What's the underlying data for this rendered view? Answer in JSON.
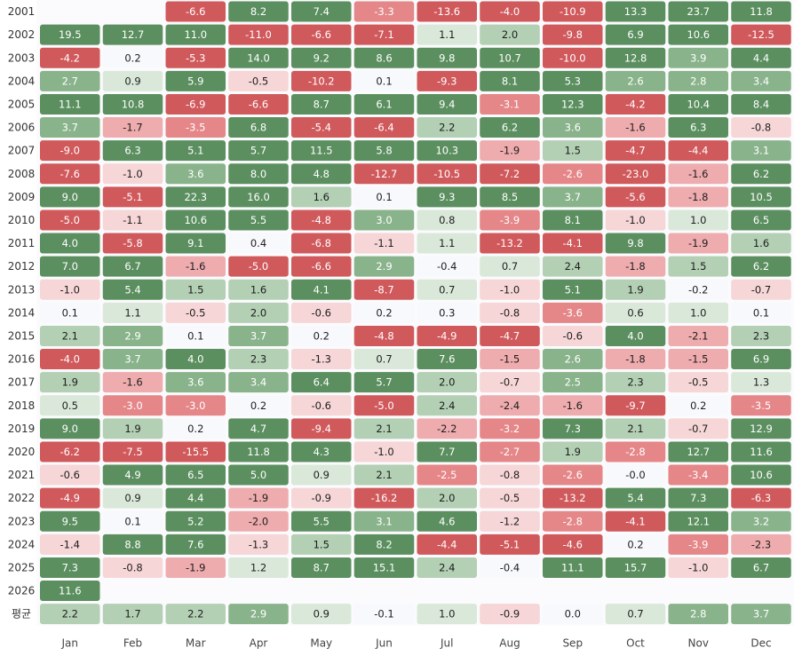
{
  "chart_data": {
    "type": "heatmap",
    "columns": [
      "Jan",
      "Feb",
      "Mar",
      "Apr",
      "May",
      "Jun",
      "Jul",
      "Aug",
      "Sep",
      "Oct",
      "Nov",
      "Dec"
    ],
    "rows": [
      "2001",
      "2002",
      "2003",
      "2004",
      "2005",
      "2006",
      "2007",
      "2008",
      "2009",
      "2010",
      "2011",
      "2012",
      "2013",
      "2014",
      "2015",
      "2016",
      "2017",
      "2018",
      "2019",
      "2020",
      "2021",
      "2022",
      "2023",
      "2024",
      "2025",
      "2026",
      "평균"
    ],
    "display": [
      [
        null,
        null,
        "-6.6",
        "8.2",
        "7.4",
        "-3.3",
        "-13.6",
        "-4.0",
        "-10.9",
        "13.3",
        "23.7",
        "11.8"
      ],
      [
        "19.5",
        "12.7",
        "11.0",
        "-11.0",
        "-6.6",
        "-7.1",
        "1.1",
        "2.0",
        "-9.8",
        "6.9",
        "10.6",
        "-12.5"
      ],
      [
        "-4.2",
        "0.2",
        "-5.3",
        "14.0",
        "9.2",
        "8.6",
        "9.8",
        "10.7",
        "-10.0",
        "12.8",
        "3.9",
        "4.4"
      ],
      [
        "2.7",
        "0.9",
        "5.9",
        "-0.5",
        "-10.2",
        "0.1",
        "-9.3",
        "8.1",
        "5.3",
        "2.6",
        "2.8",
        "3.4"
      ],
      [
        "11.1",
        "10.8",
        "-6.9",
        "-6.6",
        "8.7",
        "6.1",
        "9.4",
        "-3.1",
        "12.3",
        "-4.2",
        "10.4",
        "8.4"
      ],
      [
        "3.7",
        "-1.7",
        "-3.5",
        "6.8",
        "-5.4",
        "-6.4",
        "2.2",
        "6.2",
        "3.6",
        "-1.6",
        "6.3",
        "-0.8"
      ],
      [
        "-9.0",
        "6.3",
        "5.1",
        "5.7",
        "11.5",
        "5.8",
        "10.3",
        "-1.9",
        "1.5",
        "-4.7",
        "-4.4",
        "3.1"
      ],
      [
        "-7.6",
        "-1.0",
        "3.6",
        "8.0",
        "4.8",
        "-12.7",
        "-10.5",
        "-7.2",
        "-2.6",
        "-23.0",
        "-1.6",
        "6.2"
      ],
      [
        "9.0",
        "-5.1",
        "22.3",
        "16.0",
        "1.6",
        "0.1",
        "9.3",
        "8.5",
        "3.7",
        "-5.6",
        "-1.8",
        "10.5"
      ],
      [
        "-5.0",
        "-1.1",
        "10.6",
        "5.5",
        "-4.8",
        "3.0",
        "0.8",
        "-3.9",
        "8.1",
        "-1.0",
        "1.0",
        "6.5"
      ],
      [
        "4.0",
        "-5.8",
        "9.1",
        "0.4",
        "-6.8",
        "-1.1",
        "1.1",
        "-13.2",
        "-4.1",
        "9.8",
        "-1.9",
        "1.6"
      ],
      [
        "7.0",
        "6.7",
        "-1.6",
        "-5.0",
        "-6.6",
        "2.9",
        "-0.4",
        "0.7",
        "2.4",
        "-1.8",
        "1.5",
        "6.2"
      ],
      [
        "-1.0",
        "5.4",
        "1.5",
        "1.6",
        "4.1",
        "-8.7",
        "0.7",
        "-1.0",
        "5.1",
        "1.9",
        "-0.2",
        "-0.7"
      ],
      [
        "0.1",
        "1.1",
        "-0.5",
        "2.0",
        "-0.6",
        "0.2",
        "0.3",
        "-0.8",
        "-3.6",
        "0.6",
        "1.0",
        "0.1"
      ],
      [
        "2.1",
        "2.9",
        "0.1",
        "3.7",
        "0.2",
        "-4.8",
        "-4.9",
        "-4.7",
        "-0.6",
        "4.0",
        "-2.1",
        "2.3"
      ],
      [
        "-4.0",
        "3.7",
        "4.0",
        "2.3",
        "-1.3",
        "0.7",
        "7.6",
        "-1.5",
        "2.6",
        "-1.8",
        "-1.5",
        "6.9"
      ],
      [
        "1.9",
        "-1.6",
        "3.6",
        "3.4",
        "6.4",
        "5.7",
        "2.0",
        "-0.7",
        "2.5",
        "2.3",
        "-0.5",
        "1.3"
      ],
      [
        "0.5",
        "-3.0",
        "-3.0",
        "0.2",
        "-0.6",
        "-5.0",
        "2.4",
        "-2.4",
        "-1.6",
        "-9.7",
        "0.2",
        "-3.5"
      ],
      [
        "9.0",
        "1.9",
        "0.2",
        "4.7",
        "-9.4",
        "2.1",
        "-2.2",
        "-3.2",
        "7.3",
        "2.1",
        "-0.7",
        "12.9"
      ],
      [
        "-6.2",
        "-7.5",
        "-15.5",
        "11.8",
        "4.3",
        "-1.0",
        "7.7",
        "-2.7",
        "1.9",
        "-2.8",
        "12.7",
        "11.6"
      ],
      [
        "-0.6",
        "4.9",
        "6.5",
        "5.0",
        "0.9",
        "2.1",
        "-2.5",
        "-0.8",
        "-2.6",
        "-0.0",
        "-3.4",
        "10.6"
      ],
      [
        "-4.9",
        "0.9",
        "4.4",
        "-1.9",
        "-0.9",
        "-16.2",
        "2.0",
        "-0.5",
        "-13.2",
        "5.4",
        "7.3",
        "-6.3"
      ],
      [
        "9.5",
        "0.1",
        "5.2",
        "-2.0",
        "5.5",
        "3.1",
        "4.6",
        "-1.2",
        "-2.8",
        "-4.1",
        "12.1",
        "3.2"
      ],
      [
        "-1.4",
        "8.8",
        "7.6",
        "-1.3",
        "1.5",
        "8.2",
        "-4.4",
        "-5.1",
        "-4.6",
        "0.2",
        "-3.9",
        "-2.3"
      ],
      [
        "7.3",
        "-0.8",
        "-1.9",
        "1.2",
        "8.7",
        "15.1",
        "2.4",
        "-0.4",
        "11.1",
        "15.7",
        "-1.0",
        "6.7"
      ],
      [
        "11.6",
        null,
        null,
        null,
        null,
        null,
        null,
        null,
        null,
        null,
        null,
        null
      ],
      [
        "2.2",
        "1.7",
        "2.2",
        "2.9",
        "0.9",
        "-0.1",
        "1.0",
        "-0.9",
        "0.0",
        "0.7",
        "2.8",
        "3.7"
      ]
    ],
    "colors": {
      "pos_strong": "#5b8f5f",
      "pos_mid": "#89b38b",
      "pos_light": "#b3cfb4",
      "pos_faint": "#dae8da",
      "neutral": "#f8f9fc",
      "neg_faint": "#f6d6d7",
      "neg_light": "#eeacae",
      "neg_mid": "#e58688",
      "neg_strong": "#d0595c",
      "text_dark": "#1e1e1e",
      "text_light": "#ffffff"
    }
  }
}
